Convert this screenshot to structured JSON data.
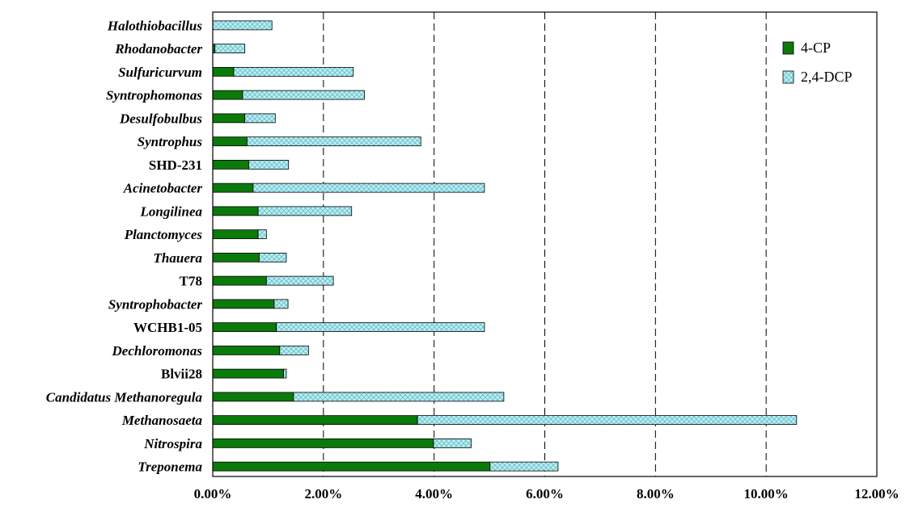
{
  "chart_data": {
    "type": "bar",
    "orientation": "horizontal",
    "stacked": true,
    "categories": [
      "Halothiobacillus",
      "Rhodanobacter",
      "Sulfuricurvum",
      "Syntrophomonas",
      "Desulfobulbus",
      "Syntrophus",
      "SHD-231",
      "Acinetobacter",
      "Longilinea",
      "Planctomyces",
      "Thauera",
      "T78",
      "Syntrophobacter",
      "WCHB1-05",
      "Dechloromonas",
      "Blvii28",
      "Candidatus Methanoregula",
      "Methanosaeta",
      "Nitrospira",
      "Treponema"
    ],
    "italic": [
      true,
      true,
      true,
      true,
      true,
      true,
      false,
      true,
      true,
      true,
      true,
      false,
      true,
      false,
      true,
      false,
      true,
      true,
      true,
      true
    ],
    "series": [
      {
        "name": "4-CP",
        "color": "#0a7a0a",
        "pattern": "solid",
        "values": [
          0.0,
          0.04,
          0.38,
          0.54,
          0.58,
          0.62,
          0.65,
          0.73,
          0.82,
          0.82,
          0.84,
          0.97,
          1.11,
          1.15,
          1.21,
          1.28,
          1.46,
          3.7,
          3.99,
          5.01
        ]
      },
      {
        "name": "2,4-DCP",
        "color": "#8ee4ea",
        "pattern": "crosshatch",
        "values": [
          1.07,
          0.54,
          2.16,
          2.2,
          0.55,
          3.14,
          0.72,
          4.18,
          1.69,
          0.15,
          0.49,
          1.21,
          0.25,
          3.76,
          0.52,
          0.05,
          3.8,
          6.85,
          0.68,
          1.23
        ]
      }
    ],
    "xlim": [
      0,
      12
    ],
    "xticks": [
      "0.00%",
      "2.00%",
      "4.00%",
      "6.00%",
      "8.00%",
      "10.00%",
      "12.00%"
    ],
    "grid": "vertical dashed",
    "legend": "top-right"
  }
}
